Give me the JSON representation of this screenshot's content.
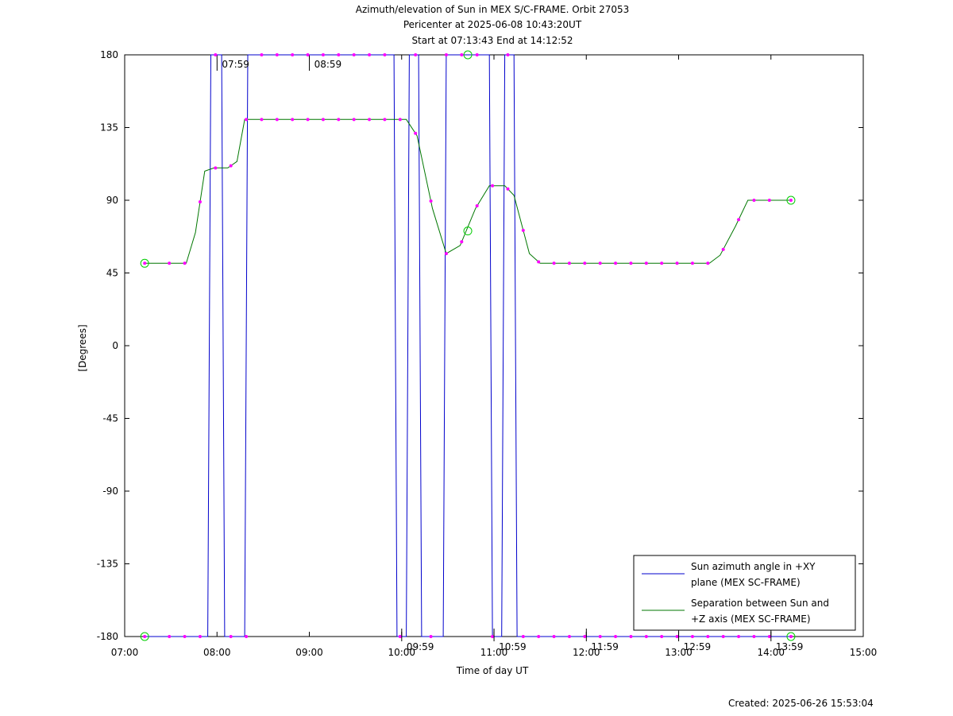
{
  "header": {
    "title_line1": "Azimuth/elevation of Sun in MEX S/C-FRAME.  Orbit 27053",
    "title_line2": "Pericenter at 2025-06-08 10:43:20UT",
    "title_line3": "Start at 07:13:43 End at 14:12:52"
  },
  "footer": {
    "created": "Created: 2025-06-26 15:53:04"
  },
  "colors": {
    "azimuth": "#0000cc",
    "separation": "#007700",
    "markers": "#ff00ff",
    "endpoints": "#00cc00",
    "axes": "#000000"
  },
  "chart_data": {
    "type": "line",
    "xlabel": "Time of day UT",
    "ylabel": "[Degrees]",
    "xlim": [
      "07:00",
      "15:00"
    ],
    "ylim": [
      -180,
      180
    ],
    "x_ticks": [
      "07:00",
      "08:00",
      "09:00",
      "10:00",
      "11:00",
      "12:00",
      "13:00",
      "14:00",
      "15:00"
    ],
    "y_ticks": [
      "180",
      "135",
      "90",
      "45",
      "0",
      "-45",
      "-90",
      "-135",
      "-180"
    ],
    "time_annotations_top": [
      "07:59",
      "08:59"
    ],
    "time_annotations_bottom": [
      "09:59",
      "10:59",
      "11:59",
      "12:59",
      "13:59"
    ],
    "legend_position": "bottom-right",
    "series": [
      {
        "name": "Sun azimuth angle in +XY plane (MEX SC-FRAME)",
        "legend_line1": "Sun azimuth angle in +XY",
        "legend_line2": "plane (MEX SC-FRAME)",
        "points": [
          [
            "07:13",
            -180
          ],
          [
            "07:54",
            -180
          ],
          [
            "07:56",
            180
          ],
          [
            "08:03",
            180
          ],
          [
            "08:05",
            -180
          ],
          [
            "08:18",
            -180
          ],
          [
            "08:20",
            180
          ],
          [
            "09:55",
            180
          ],
          [
            "09:57",
            -180
          ],
          [
            "10:03",
            -180
          ],
          [
            "10:05",
            180
          ],
          [
            "10:11",
            180
          ],
          [
            "10:13",
            -180
          ],
          [
            "10:27",
            -180
          ],
          [
            "10:29",
            180
          ],
          [
            "10:57",
            180
          ],
          [
            "10:59",
            -180
          ],
          [
            "11:05",
            -180
          ],
          [
            "11:07",
            180
          ],
          [
            "11:13",
            180
          ],
          [
            "11:15",
            -180
          ],
          [
            "14:13",
            -180
          ]
        ]
      },
      {
        "name": "Separation between Sun and +Z axis (MEX SC-FRAME)",
        "legend_line1": "Separation between Sun and",
        "legend_line2": "+Z axis (MEX SC-FRAME)",
        "points": [
          [
            "07:13",
            51
          ],
          [
            "07:40",
            51
          ],
          [
            "07:46",
            70
          ],
          [
            "07:52",
            108
          ],
          [
            "07:58",
            110
          ],
          [
            "08:07",
            110
          ],
          [
            "08:13",
            114
          ],
          [
            "08:18",
            140
          ],
          [
            "10:03",
            140
          ],
          [
            "10:10",
            130
          ],
          [
            "10:20",
            85
          ],
          [
            "10:29",
            57
          ],
          [
            "10:38",
            62
          ],
          [
            "10:48",
            85
          ],
          [
            "10:57",
            99
          ],
          [
            "11:07",
            99
          ],
          [
            "11:13",
            93
          ],
          [
            "11:23",
            57
          ],
          [
            "11:30",
            51
          ],
          [
            "13:20",
            51
          ],
          [
            "13:27",
            56
          ],
          [
            "13:37",
            74
          ],
          [
            "13:45",
            90
          ],
          [
            "14:13",
            90
          ]
        ]
      }
    ],
    "marker_times": [
      "07:13",
      "07:29",
      "07:39",
      "07:49",
      "07:59",
      "08:09",
      "08:19",
      "08:29",
      "08:39",
      "08:49",
      "08:59",
      "09:09",
      "09:19",
      "09:29",
      "09:39",
      "09:49",
      "09:59",
      "10:09",
      "10:19",
      "10:29",
      "10:39",
      "10:49",
      "10:59",
      "11:09",
      "11:19",
      "11:29",
      "11:39",
      "11:49",
      "11:59",
      "12:09",
      "12:19",
      "12:29",
      "12:39",
      "12:49",
      "12:59",
      "13:09",
      "13:19",
      "13:29",
      "13:39",
      "13:49",
      "13:59",
      "14:13"
    ],
    "circle_markers": [
      [
        "07:13",
        51
      ],
      [
        "07:13",
        -180
      ],
      [
        "10:43",
        180
      ],
      [
        "10:43",
        71
      ],
      [
        "14:13",
        90
      ],
      [
        "14:13",
        -180
      ]
    ]
  }
}
